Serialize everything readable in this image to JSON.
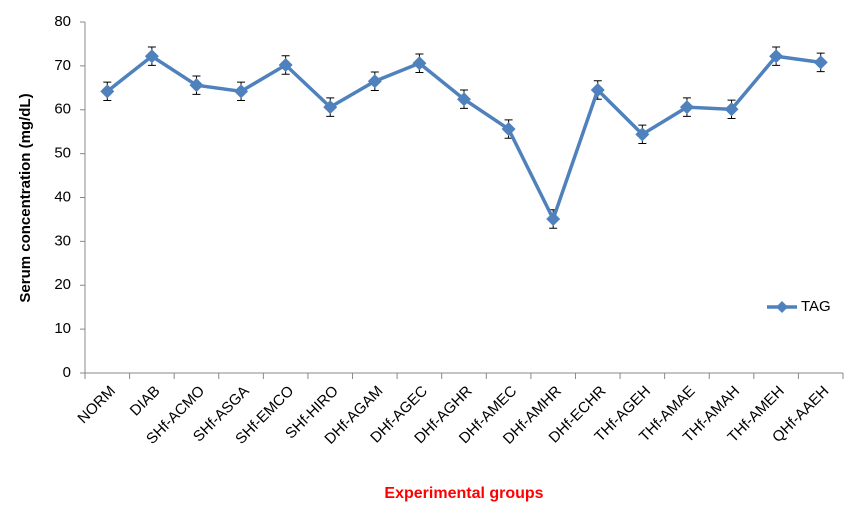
{
  "chart_data": {
    "type": "line",
    "xlabel": "Experimental groups",
    "ylabel": "Serum concentration (mg/dL)",
    "categories": [
      "NORM",
      "DIAB",
      "SHf-ACMO",
      "SHf-ASGA",
      "SHf-EMCO",
      "SHf-HIRO",
      "DHf-AGAM",
      "DHf-AGEC",
      "DHf-AGHR",
      "DHf-AMEC",
      "DHf-AMHR",
      "DHf-ECHR",
      "THf-AGEH",
      "THf-AMAE",
      "THf-AMAH",
      "THf-AMEH",
      "QHf-AAEH"
    ],
    "series": [
      {
        "name": "TAG",
        "color": "#4f81bd",
        "values": [
          64.2,
          72.2,
          65.6,
          64.2,
          70.2,
          60.6,
          66.5,
          70.6,
          62.4,
          55.6,
          35.1,
          64.5,
          54.4,
          60.6,
          60.1,
          72.2,
          70.8
        ],
        "errors": [
          2.1,
          2.1,
          2.1,
          2.1,
          2.1,
          2.1,
          2.1,
          2.1,
          2.1,
          2.1,
          2.1,
          2.1,
          2.1,
          2.1,
          2.1,
          2.1,
          2.1
        ]
      }
    ],
    "ylim": [
      0,
      80
    ],
    "yticks": [
      0,
      10,
      20,
      30,
      40,
      50,
      60,
      70,
      80
    ],
    "grid": false,
    "legend": "right",
    "xlabel_color": "#ff0000"
  }
}
